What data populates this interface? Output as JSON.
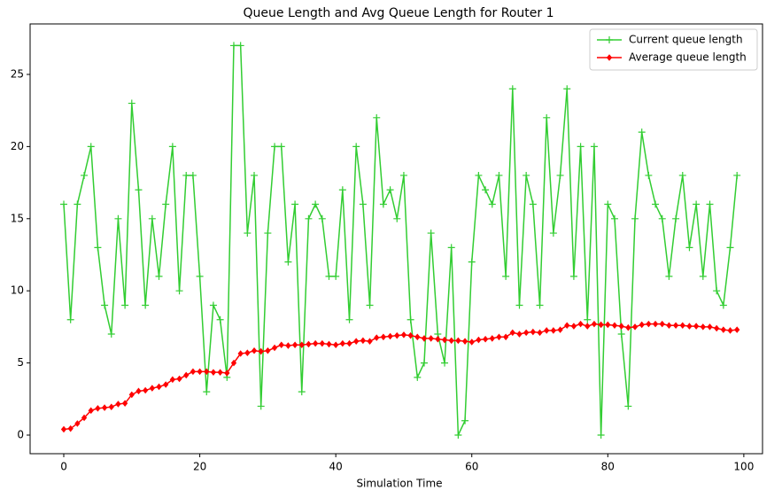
{
  "chart_data": {
    "type": "line",
    "title": "Queue Length and Avg Queue Length for Router 1",
    "x_label": "Simulation Time",
    "x": [
      0,
      1,
      2,
      3,
      4,
      5,
      6,
      7,
      8,
      9,
      10,
      11,
      12,
      13,
      14,
      15,
      16,
      17,
      18,
      19,
      20,
      21,
      22,
      23,
      24,
      25,
      26,
      27,
      28,
      29,
      30,
      31,
      32,
      33,
      34,
      35,
      36,
      37,
      38,
      39,
      40,
      41,
      42,
      43,
      44,
      45,
      46,
      47,
      48,
      49,
      50,
      51,
      52,
      53,
      54,
      55,
      56,
      57,
      58,
      59,
      60,
      61,
      62,
      63,
      64,
      65,
      66,
      67,
      68,
      69,
      70,
      71,
      72,
      73,
      74,
      75,
      76,
      77,
      78,
      79,
      80,
      81,
      82,
      83,
      84,
      85,
      86,
      87,
      88,
      89,
      90,
      91,
      92,
      93,
      94,
      95,
      96,
      97,
      98,
      99
    ],
    "series": [
      {
        "name": "Current queue length",
        "color": "#32cd32",
        "marker": "plus",
        "values": [
          16,
          8,
          16,
          18,
          20,
          13,
          9,
          7,
          15,
          9,
          23,
          17,
          9,
          15,
          11,
          16,
          20,
          10,
          18,
          18,
          11,
          3,
          9,
          8,
          4,
          27,
          27,
          14,
          18,
          2,
          14,
          20,
          20,
          12,
          16,
          3,
          15,
          16,
          15,
          11,
          11,
          17,
          8,
          20,
          16,
          9,
          22,
          16,
          17,
          15,
          18,
          8,
          4,
          5,
          14,
          7,
          5,
          13,
          0,
          1,
          12,
          18,
          17,
          16,
          18,
          11,
          24,
          9,
          18,
          16,
          9,
          22,
          14,
          18,
          24,
          11,
          20,
          8,
          20,
          0,
          16,
          15,
          7,
          2,
          15,
          21,
          18,
          16,
          15,
          11,
          15,
          18,
          13,
          16,
          11,
          16,
          10,
          9,
          13,
          18
        ]
      },
      {
        "name": "Average queue length",
        "color": "#ff0000",
        "marker": "diamond",
        "values": [
          0.4,
          0.45,
          0.8,
          1.2,
          1.7,
          1.85,
          1.9,
          1.95,
          2.15,
          2.2,
          2.8,
          3.05,
          3.1,
          3.25,
          3.35,
          3.5,
          3.85,
          3.9,
          4.15,
          4.4,
          4.4,
          4.4,
          4.35,
          4.35,
          4.3,
          5.0,
          5.65,
          5.7,
          5.85,
          5.8,
          5.85,
          6.05,
          6.25,
          6.2,
          6.25,
          6.25,
          6.3,
          6.35,
          6.35,
          6.3,
          6.25,
          6.35,
          6.35,
          6.5,
          6.55,
          6.5,
          6.75,
          6.8,
          6.85,
          6.9,
          6.95,
          6.9,
          6.8,
          6.7,
          6.7,
          6.65,
          6.6,
          6.55,
          6.55,
          6.5,
          6.45,
          6.6,
          6.65,
          6.7,
          6.8,
          6.8,
          7.1,
          7.0,
          7.1,
          7.15,
          7.1,
          7.25,
          7.25,
          7.3,
          7.6,
          7.55,
          7.7,
          7.55,
          7.7,
          7.65,
          7.65,
          7.6,
          7.55,
          7.45,
          7.5,
          7.65,
          7.7,
          7.7,
          7.7,
          7.6,
          7.6,
          7.6,
          7.55,
          7.55,
          7.5,
          7.5,
          7.4,
          7.3,
          7.25,
          7.3
        ]
      }
    ],
    "xlim": [
      -4.95,
      102.75
    ],
    "ylim": [
      -1.29,
      28.5
    ],
    "xticks": [
      0,
      20,
      40,
      60,
      80,
      100
    ],
    "yticks": [
      0,
      5,
      10,
      15,
      20,
      25
    ],
    "grid": false,
    "legend": "upper right"
  }
}
